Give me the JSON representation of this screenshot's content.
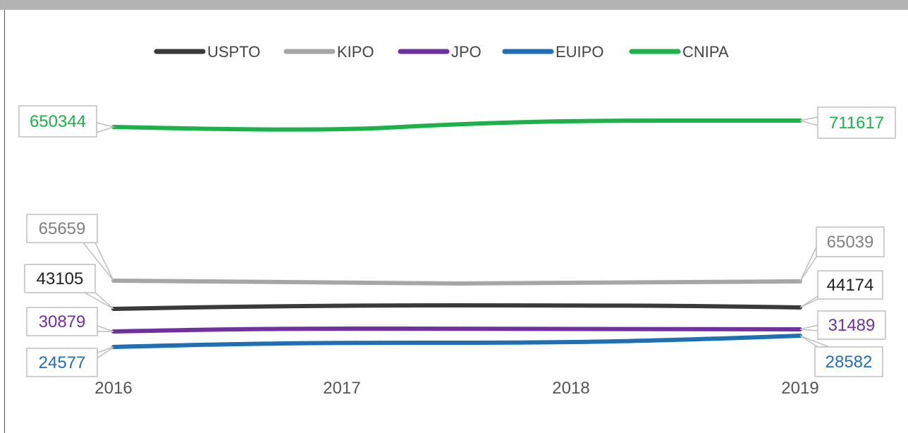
{
  "chart_data": {
    "type": "line",
    "categories": [
      "2016",
      "2017",
      "2018",
      "2019"
    ],
    "series": [
      {
        "name": "USPTO",
        "color": "#3a3a3a",
        "values": [
          43105,
          null,
          null,
          44174
        ],
        "start_label": "43105",
        "end_label": "44174"
      },
      {
        "name": "KIPO",
        "color": "#a6a6a6",
        "values": [
          65659,
          null,
          null,
          65039
        ],
        "start_label": "65659",
        "end_label": "65039"
      },
      {
        "name": "JPO",
        "color": "#7030a0",
        "values": [
          30879,
          null,
          null,
          31489
        ],
        "start_label": "30879",
        "end_label": "31489"
      },
      {
        "name": "EUIPO",
        "color": "#1f6fb5",
        "values": [
          24577,
          null,
          null,
          28582
        ],
        "start_label": "24577",
        "end_label": "28582"
      },
      {
        "name": "CNIPA",
        "color": "#1db14b",
        "values": [
          650344,
          null,
          null,
          711617
        ],
        "start_label": "650344",
        "end_label": "711617"
      }
    ],
    "legend_position": "top",
    "grid": false,
    "scale_note": "broken y-axis: CNIPA plotted on separate upper band"
  }
}
